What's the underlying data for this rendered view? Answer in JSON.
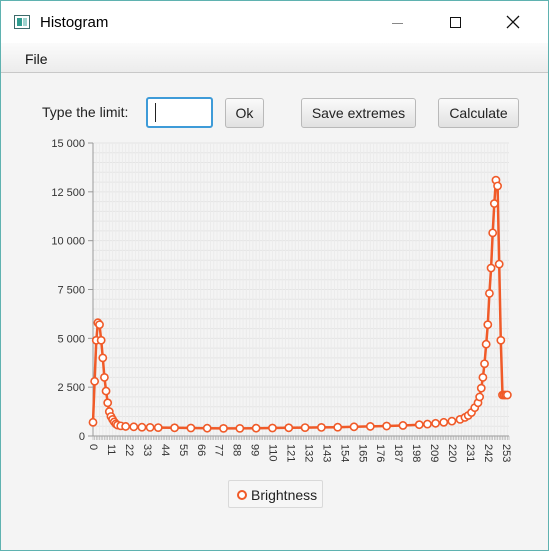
{
  "window": {
    "title": "Histogram",
    "minimize": "—",
    "maximize": "☐",
    "close": "✕"
  },
  "menu": {
    "file": "File"
  },
  "controls": {
    "limit_label": "Type the limit:",
    "limit_value": "",
    "ok_label": "Ok",
    "save_label": "Save extremes",
    "calculate_label": "Calculate"
  },
  "colors": {
    "series": "#f05a28",
    "accent": "#3e9bd8"
  },
  "chart_data": {
    "type": "line",
    "legend_placement": "bottom-center",
    "grid": true,
    "y_ticks": [
      "15 000",
      "12 500",
      "10 000",
      "7 500",
      "5 000",
      "2 500",
      "0"
    ],
    "x_ticks": [
      "0",
      "11",
      "22",
      "33",
      "44",
      "55",
      "66",
      "77",
      "88",
      "99",
      "110",
      "121",
      "132",
      "143",
      "154",
      "165",
      "176",
      "187",
      "198",
      "209",
      "220",
      "231",
      "242",
      "253"
    ],
    "xlim": [
      0,
      255
    ],
    "ylim": [
      0,
      15000
    ],
    "series": [
      {
        "name": "Brightness",
        "x": [
          0,
          1,
          2,
          3,
          4,
          5,
          6,
          7,
          8,
          9,
          10,
          11,
          12,
          13,
          14,
          15,
          17,
          20,
          25,
          30,
          35,
          40,
          50,
          60,
          70,
          80,
          90,
          100,
          110,
          120,
          130,
          140,
          150,
          160,
          170,
          180,
          190,
          200,
          205,
          210,
          215,
          220,
          225,
          228,
          230,
          232,
          234,
          236,
          237,
          238,
          239,
          240,
          241,
          242,
          243,
          244,
          245,
          246,
          247,
          248,
          249,
          250,
          251,
          252,
          253,
          254
        ],
        "y": [
          700,
          2800,
          4900,
          5800,
          5700,
          4900,
          4000,
          3000,
          2300,
          1700,
          1250,
          1000,
          850,
          720,
          620,
          560,
          520,
          490,
          470,
          450,
          440,
          430,
          420,
          410,
          400,
          390,
          390,
          400,
          410,
          420,
          430,
          440,
          450,
          470,
          490,
          510,
          540,
          580,
          610,
          650,
          700,
          760,
          850,
          950,
          1050,
          1200,
          1450,
          1700,
          2000,
          2450,
          3000,
          3700,
          4700,
          5700,
          7300,
          8600,
          10400,
          11900,
          13100,
          12800,
          8800,
          4900,
          2100,
          2100,
          2100,
          2100
        ]
      }
    ]
  }
}
